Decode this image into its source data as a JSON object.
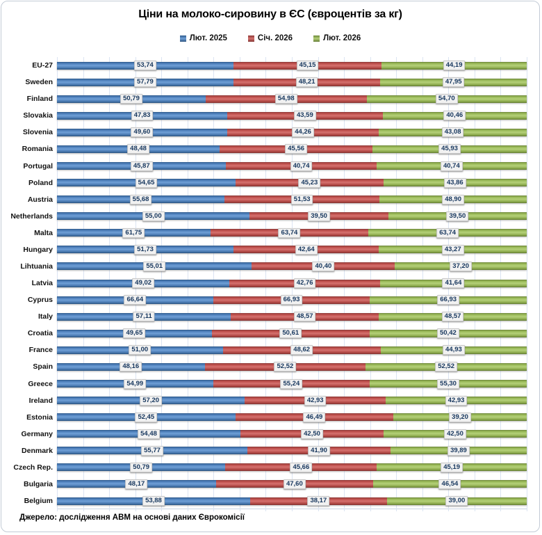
{
  "title": "Ціни на молоко-сировину в ЄС (євроцентів за кг)",
  "source": "Джерело: дослідження АВМ на основі даних Єврокомісії",
  "colors": {
    "series_blue": "#4F81BD",
    "series_red": "#C0504D",
    "series_green": "#9BBB59",
    "gridline": "#dbe4f2",
    "value_text": "#17375E",
    "value_box_bg": "#F1F1F1",
    "value_box_border": "#C9C9C9"
  },
  "chart_data": {
    "type": "bar",
    "subtype": "horizontal-100%-stacked",
    "title": "Ціни на молоко-сировину в ЄС (євроцентів за кг)",
    "legend_position": "top",
    "grid": true,
    "grid_intervals": 18,
    "value_decimal_separator": ",",
    "categories": [
      "EU-27",
      "Sweden",
      "Finland",
      "Slovakia",
      "Slovenia",
      "Romania",
      "Portugal",
      "Poland",
      "Austria",
      "Netherlands",
      "Malta",
      "Hungary",
      "Lihtuania",
      "Latvia",
      "Cyprus",
      "Italy",
      "Croatia",
      "France",
      "Spain",
      "Greece",
      "Ireland",
      "Estonia",
      "Germany",
      "Denmark",
      "Czech Rep.",
      "Bulgaria",
      "Belgium"
    ],
    "series": [
      {
        "name": "Лют. 2025",
        "color": "#4F81BD",
        "values": [
          53.74,
          57.79,
          50.79,
          47.83,
          49.6,
          48.48,
          45.87,
          54.65,
          55.68,
          55.0,
          61.75,
          51.73,
          55.01,
          49.02,
          66.64,
          57.11,
          49.65,
          51.0,
          48.16,
          54.99,
          57.2,
          52.45,
          54.48,
          55.77,
          50.79,
          48.17,
          53.88
        ]
      },
      {
        "name": "Січ. 2026",
        "color": "#C0504D",
        "values": [
          45.15,
          48.21,
          54.98,
          43.59,
          44.26,
          45.56,
          40.74,
          45.23,
          51.53,
          39.5,
          63.74,
          42.64,
          40.4,
          42.76,
          66.93,
          48.57,
          50.61,
          48.62,
          52.52,
          55.24,
          42.93,
          46.49,
          42.5,
          41.9,
          45.66,
          47.6,
          38.17
        ]
      },
      {
        "name": "Лют. 2026",
        "color": "#9BBB59",
        "values": [
          44.19,
          47.95,
          54.7,
          40.46,
          43.08,
          45.93,
          40.74,
          43.86,
          48.9,
          39.5,
          63.74,
          43.27,
          37.2,
          41.64,
          66.93,
          48.57,
          50.42,
          44.93,
          52.52,
          55.3,
          42.93,
          39.2,
          42.5,
          39.89,
          45.19,
          46.54,
          39.0
        ]
      }
    ]
  }
}
